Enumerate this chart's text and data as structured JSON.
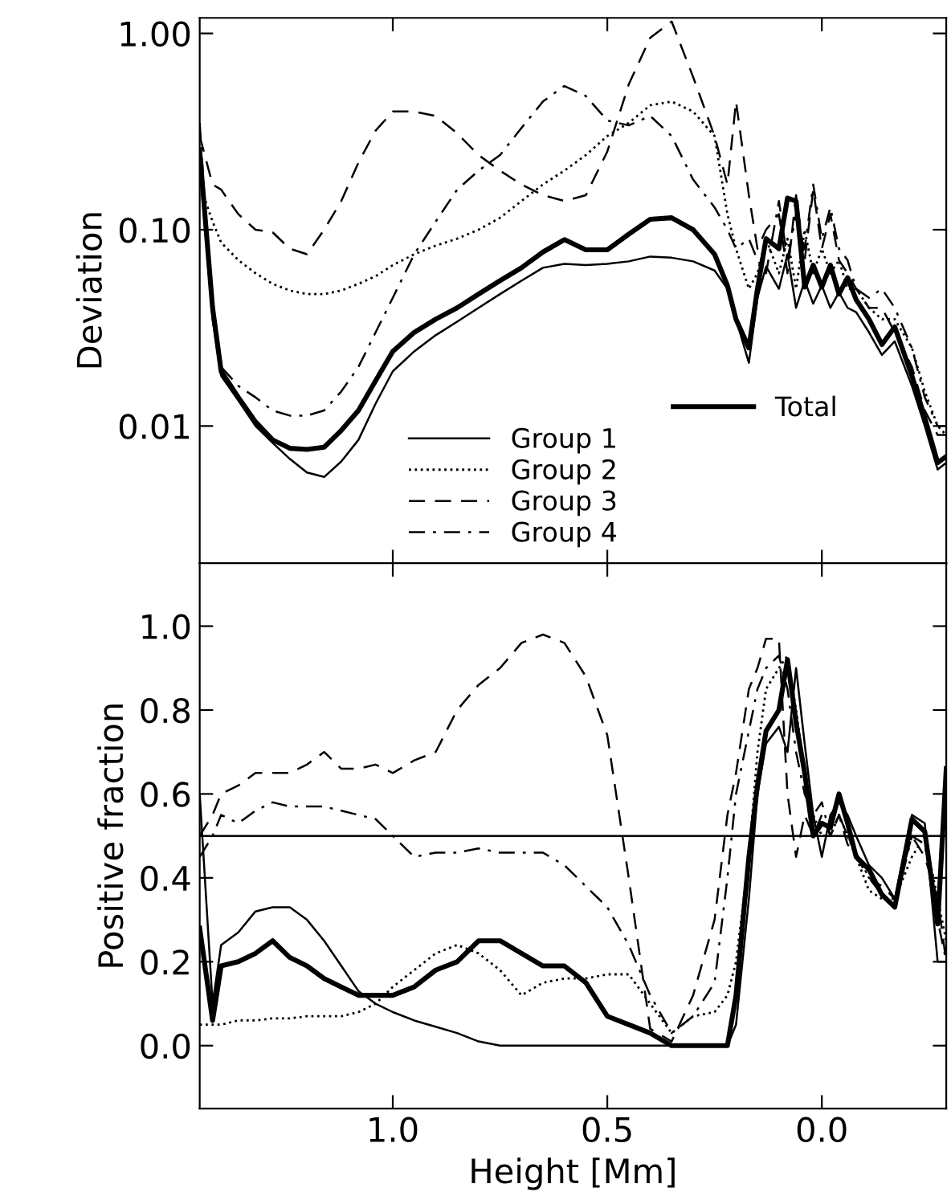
{
  "chart_data": [
    {
      "type": "line",
      "ylabel": "Deviation",
      "log": "y",
      "xlim": [
        1.45,
        -0.29
      ],
      "ylim": [
        0.002,
        1.2
      ],
      "xticks": [
        {
          "value": 1.0,
          "label": null
        },
        {
          "value": 0.5,
          "label": null
        },
        {
          "value": 0.0,
          "label": null
        }
      ],
      "yticks": [
        {
          "value": 0.01,
          "label": "0.01"
        },
        {
          "value": 0.1,
          "label": "0.10"
        },
        {
          "value": 1.0,
          "label": "1.00"
        }
      ],
      "tick_labels": "y",
      "legend": "bottom",
      "grid": false,
      "x": [
        1.45,
        1.42,
        1.4,
        1.36,
        1.32,
        1.28,
        1.24,
        1.2,
        1.16,
        1.12,
        1.08,
        1.04,
        1.0,
        0.95,
        0.9,
        0.85,
        0.8,
        0.75,
        0.7,
        0.65,
        0.6,
        0.55,
        0.5,
        0.45,
        0.4,
        0.35,
        0.3,
        0.25,
        0.22,
        0.2,
        0.17,
        0.15,
        0.13,
        0.1,
        0.08,
        0.06,
        0.04,
        0.02,
        0.0,
        -0.02,
        -0.04,
        -0.06,
        -0.08,
        -0.11,
        -0.14,
        -0.17,
        -0.21,
        -0.24,
        -0.27,
        -0.29
      ],
      "series": [
        {
          "name": "Group 1",
          "color": "#000000",
          "line_style": "solid",
          "values": [
            0.22,
            0.035,
            0.018,
            0.0135,
            0.01,
            0.0082,
            0.0068,
            0.0058,
            0.0055,
            0.0066,
            0.0085,
            0.013,
            0.019,
            0.024,
            0.029,
            0.034,
            0.04,
            0.047,
            0.055,
            0.064,
            0.067,
            0.066,
            0.067,
            0.069,
            0.073,
            0.072,
            0.069,
            0.062,
            0.05,
            0.035,
            0.021,
            0.045,
            0.065,
            0.05,
            0.075,
            0.04,
            0.055,
            0.042,
            0.052,
            0.04,
            0.048,
            0.04,
            0.038,
            0.03,
            0.023,
            0.027,
            0.016,
            0.01,
            0.006,
            0.0065
          ]
        },
        {
          "name": "Group 2",
          "color": "#000000",
          "line_style": "dotted",
          "values": [
            0.17,
            0.11,
            0.086,
            0.07,
            0.06,
            0.053,
            0.049,
            0.047,
            0.047,
            0.049,
            0.053,
            0.058,
            0.066,
            0.075,
            0.083,
            0.09,
            0.1,
            0.115,
            0.14,
            0.17,
            0.2,
            0.24,
            0.3,
            0.35,
            0.43,
            0.45,
            0.4,
            0.3,
            0.12,
            0.08,
            0.05,
            0.06,
            0.09,
            0.06,
            0.09,
            0.05,
            0.1,
            0.06,
            0.08,
            0.06,
            0.07,
            0.05,
            0.05,
            0.04,
            0.035,
            0.035,
            0.025,
            0.015,
            0.01,
            0.009
          ]
        },
        {
          "name": "Group 3",
          "color": "#000000",
          "line_style": "dashed",
          "values": [
            0.3,
            0.17,
            0.16,
            0.12,
            0.1,
            0.097,
            0.08,
            0.075,
            0.1,
            0.14,
            0.22,
            0.32,
            0.4,
            0.4,
            0.38,
            0.31,
            0.24,
            0.2,
            0.17,
            0.15,
            0.14,
            0.15,
            0.25,
            0.55,
            0.95,
            1.15,
            0.6,
            0.3,
            0.17,
            0.45,
            0.15,
            0.08,
            0.1,
            0.12,
            0.06,
            0.15,
            0.07,
            0.16,
            0.08,
            0.12,
            0.07,
            0.06,
            0.05,
            0.04,
            0.04,
            0.03,
            0.02,
            0.012,
            0.009,
            0.009
          ]
        },
        {
          "name": "Group 4",
          "color": "#000000",
          "line_style": "dashdot",
          "values": [
            0.35,
            0.035,
            0.02,
            0.016,
            0.014,
            0.012,
            0.0113,
            0.0113,
            0.012,
            0.015,
            0.02,
            0.03,
            0.045,
            0.075,
            0.11,
            0.16,
            0.2,
            0.24,
            0.33,
            0.45,
            0.54,
            0.48,
            0.36,
            0.34,
            0.38,
            0.3,
            0.18,
            0.13,
            0.1,
            0.08,
            0.09,
            0.07,
            0.06,
            0.14,
            0.07,
            0.12,
            0.08,
            0.17,
            0.09,
            0.13,
            0.08,
            0.07,
            0.05,
            0.045,
            0.05,
            0.04,
            0.025,
            0.014,
            0.01,
            0.01
          ]
        },
        {
          "name": "Total",
          "color": "#000000",
          "line_style": "solid",
          "values": [
            0.25,
            0.04,
            0.019,
            0.014,
            0.0105,
            0.0085,
            0.0077,
            0.0076,
            0.0078,
            0.0095,
            0.012,
            0.017,
            0.024,
            0.03,
            0.035,
            0.04,
            0.047,
            0.055,
            0.064,
            0.077,
            0.089,
            0.079,
            0.079,
            0.095,
            0.113,
            0.115,
            0.1,
            0.075,
            0.052,
            0.035,
            0.025,
            0.05,
            0.09,
            0.08,
            0.145,
            0.14,
            0.051,
            0.066,
            0.051,
            0.066,
            0.047,
            0.057,
            0.044,
            0.035,
            0.026,
            0.032,
            0.018,
            0.011,
            0.0065,
            0.007
          ]
        }
      ]
    },
    {
      "type": "line",
      "xlabel": "Height [Mm]",
      "ylabel": "Positive fraction",
      "xlim": [
        1.45,
        -0.29
      ],
      "ylim": [
        -0.15,
        1.15
      ],
      "xticks": [
        {
          "value": 1.0,
          "label": "1.0"
        },
        {
          "value": 0.5,
          "label": "0.5"
        },
        {
          "value": 0.0,
          "label": "0.0"
        }
      ],
      "yticks": [
        {
          "value": 0.0,
          "label": "0.0"
        },
        {
          "value": 0.2,
          "label": "0.2"
        },
        {
          "value": 0.4,
          "label": "0.4"
        },
        {
          "value": 0.6,
          "label": "0.6"
        },
        {
          "value": 0.8,
          "label": "0.8"
        },
        {
          "value": 1.0,
          "label": "1.0"
        }
      ],
      "grid": false,
      "ref_lines": [
        {
          "axis": "y",
          "value": 0.5,
          "label": null,
          "color": "#000000",
          "line_style": "solid"
        }
      ],
      "x": [
        1.45,
        1.42,
        1.4,
        1.36,
        1.32,
        1.28,
        1.24,
        1.2,
        1.16,
        1.12,
        1.08,
        1.04,
        1.0,
        0.95,
        0.9,
        0.85,
        0.8,
        0.75,
        0.7,
        0.65,
        0.6,
        0.55,
        0.5,
        0.45,
        0.4,
        0.35,
        0.3,
        0.25,
        0.22,
        0.2,
        0.17,
        0.15,
        0.13,
        0.1,
        0.08,
        0.06,
        0.04,
        0.02,
        0.0,
        -0.02,
        -0.04,
        -0.06,
        -0.08,
        -0.11,
        -0.14,
        -0.17,
        -0.21,
        -0.24,
        -0.27,
        -0.29
      ],
      "series": [
        {
          "color": "#000000",
          "line_style": "solid",
          "values": [
            0.6,
            0.1,
            0.24,
            0.27,
            0.32,
            0.33,
            0.33,
            0.3,
            0.25,
            0.19,
            0.13,
            0.1,
            0.08,
            0.06,
            0.045,
            0.03,
            0.01,
            0,
            0,
            0,
            0,
            0,
            0,
            0,
            0,
            0,
            0,
            0,
            0,
            0.05,
            0.35,
            0.6,
            0.72,
            0.76,
            0.7,
            0.9,
            0.72,
            0.55,
            0.45,
            0.55,
            0.58,
            0.55,
            0.5,
            0.43,
            0.4,
            0.35,
            0.55,
            0.53,
            0.2,
            0.2
          ]
        },
        {
          "color": "#000000",
          "line_style": "dotted",
          "values": [
            0.05,
            0.05,
            0.05,
            0.06,
            0.06,
            0.065,
            0.065,
            0.07,
            0.07,
            0.07,
            0.08,
            0.1,
            0.14,
            0.18,
            0.22,
            0.24,
            0.22,
            0.18,
            0.12,
            0.15,
            0.16,
            0.16,
            0.17,
            0.17,
            0.1,
            0.03,
            0.07,
            0.08,
            0.12,
            0.2,
            0.45,
            0.7,
            0.85,
            0.9,
            0.93,
            0.8,
            0.65,
            0.55,
            0.5,
            0.5,
            0.55,
            0.5,
            0.45,
            0.37,
            0.35,
            0.35,
            0.45,
            0.5,
            0.35,
            0.25
          ]
        },
        {
          "color": "#000000",
          "line_style": "dashed",
          "values": [
            0.5,
            0.55,
            0.6,
            0.62,
            0.65,
            0.65,
            0.65,
            0.67,
            0.7,
            0.66,
            0.66,
            0.67,
            0.65,
            0.68,
            0.7,
            0.8,
            0.86,
            0.9,
            0.96,
            0.98,
            0.96,
            0.88,
            0.74,
            0.4,
            0.04,
            0.01,
            0.12,
            0.3,
            0.55,
            0.65,
            0.85,
            0.9,
            0.97,
            0.97,
            0.6,
            0.45,
            0.55,
            0.5,
            0.55,
            0.5,
            0.55,
            0.48,
            0.45,
            0.4,
            0.38,
            0.35,
            0.5,
            0.45,
            0.35,
            0.2
          ]
        },
        {
          "color": "#000000",
          "line_style": "dashdot",
          "values": [
            0.45,
            0.5,
            0.55,
            0.53,
            0.56,
            0.58,
            0.57,
            0.57,
            0.57,
            0.56,
            0.55,
            0.54,
            0.5,
            0.45,
            0.46,
            0.46,
            0.47,
            0.46,
            0.46,
            0.46,
            0.43,
            0.38,
            0.33,
            0.24,
            0.12,
            0.03,
            0.07,
            0.15,
            0.4,
            0.6,
            0.75,
            0.85,
            0.9,
            0.93,
            0.85,
            0.7,
            0.6,
            0.55,
            0.58,
            0.5,
            0.55,
            0.5,
            0.46,
            0.4,
            0.36,
            0.33,
            0.5,
            0.48,
            0.3,
            0.2
          ]
        },
        {
          "color": "#000000",
          "line_style": "solid",
          "values": [
            0.28,
            0.06,
            0.19,
            0.2,
            0.22,
            0.25,
            0.21,
            0.19,
            0.16,
            0.14,
            0.12,
            0.12,
            0.12,
            0.14,
            0.18,
            0.2,
            0.25,
            0.25,
            0.22,
            0.19,
            0.19,
            0.15,
            0.07,
            0.05,
            0.03,
            0,
            0,
            0,
            0,
            0.12,
            0.45,
            0.62,
            0.75,
            0.8,
            0.92,
            0.77,
            0.65,
            0.5,
            0.53,
            0.52,
            0.6,
            0.53,
            0.45,
            0.42,
            0.36,
            0.33,
            0.54,
            0.51,
            0.29,
            0.66
          ]
        }
      ]
    }
  ]
}
